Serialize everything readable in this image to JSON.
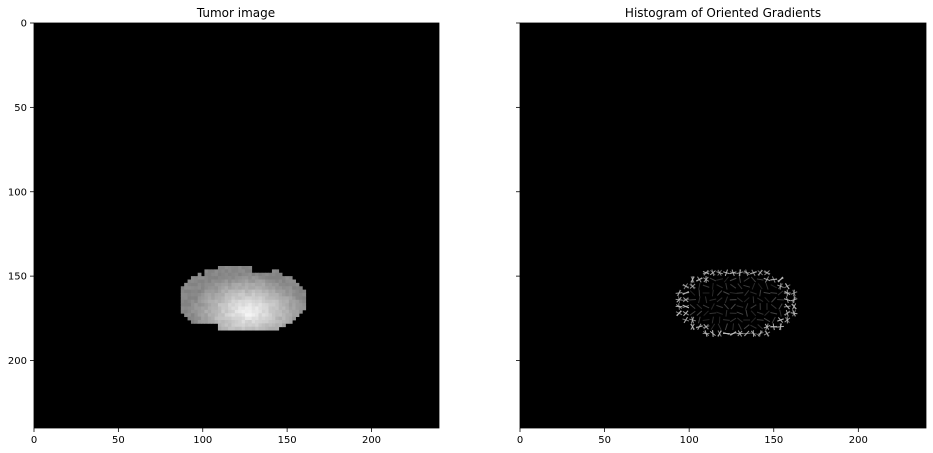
{
  "chart_data": [
    {
      "type": "heatmap",
      "title": "Tumor image",
      "xlabel": "",
      "ylabel": "",
      "xlim": [
        0,
        240
      ],
      "ylim": [
        240,
        0
      ],
      "xticks": [
        0,
        50,
        100,
        150,
        200
      ],
      "yticks": [
        0,
        50,
        100,
        150,
        200
      ],
      "colormap": "gray",
      "background": "#000000",
      "content": {
        "kind": "grayscale_blob",
        "x_range": [
          87,
          160
        ],
        "y_range": [
          144,
          182
        ],
        "bright_center": [
          126,
          170
        ],
        "min_gray": "#8c8c8c",
        "max_gray": "#ffffff"
      }
    },
    {
      "type": "heatmap",
      "title": "Histogram of Oriented Gradients",
      "xlabel": "",
      "ylabel": "",
      "xlim": [
        0,
        240
      ],
      "ylim": [
        240,
        0
      ],
      "xticks": [
        0,
        50,
        100,
        150,
        200
      ],
      "yticks": [],
      "colormap": "gray",
      "background": "#000000",
      "content": {
        "kind": "hog_cells",
        "x_range": [
          88,
          162
        ],
        "y_range": [
          142,
          186
        ],
        "stroke": "#bdbdbd"
      }
    }
  ]
}
